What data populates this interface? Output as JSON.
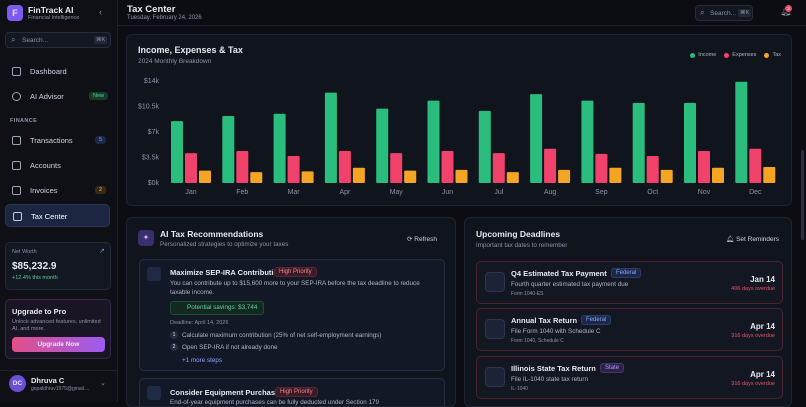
{
  "sidebar": {
    "logo": "F",
    "brand": "FinTrack AI",
    "tagline": "Financial Intelligence",
    "search": "Search...",
    "search_key": "⌘K",
    "nav": [
      {
        "label": "Dashboard"
      },
      {
        "label": "AI Advisor",
        "badge": "New"
      }
    ],
    "section": "FINANCE",
    "finance_nav": [
      {
        "label": "Transactions",
        "badge": "5"
      },
      {
        "label": "Accounts"
      },
      {
        "label": "Invoices",
        "badge": "2"
      },
      {
        "label": "Tax Center"
      }
    ],
    "net_worth": {
      "label": "Net Worth",
      "value": "$85,232.9",
      "change": "+12.4% this month"
    },
    "upgrade": {
      "title": "Upgrade to Pro",
      "text": "Unlock advanced features, unlimited AI, and more.",
      "button": "Upgrade Now"
    },
    "user": {
      "initials": "DC",
      "name": "Dhruva C",
      "email": "gopaldhruv1975@gmail...."
    }
  },
  "header": {
    "title": "Tax Center",
    "date": "Tuesday, February 24, 2026",
    "search": "Search...",
    "search_key": "⌘K",
    "notifications": "3"
  },
  "chart_data": {
    "type": "bar",
    "title": "Income, Expenses & Tax",
    "subtitle": "2024 Monthly Breakdown",
    "categories": [
      "Jan",
      "Feb",
      "Mar",
      "Apr",
      "May",
      "Jun",
      "Jul",
      "Aug",
      "Sep",
      "Oct",
      "Nov",
      "Dec"
    ],
    "series": [
      {
        "name": "Income",
        "color": "#2bbd7e",
        "values": [
          8500,
          9200,
          9500,
          12400,
          10200,
          11300,
          9900,
          12200,
          11300,
          11000,
          11000,
          13900
        ]
      },
      {
        "name": "Expenses",
        "color": "#f0426b",
        "values": [
          4100,
          4400,
          3700,
          4400,
          4100,
          4400,
          4100,
          4700,
          4000,
          3700,
          4400,
          4700
        ]
      },
      {
        "name": "Tax",
        "color": "#f5a524",
        "values": [
          1700,
          1500,
          1600,
          2100,
          1700,
          1800,
          1500,
          1800,
          2100,
          1800,
          2100,
          2200
        ]
      }
    ],
    "ylim": [
      0,
      14000
    ],
    "yticks": [
      {
        "value": 0,
        "label": "$0k"
      },
      {
        "value": 3500,
        "label": "$3.5k"
      },
      {
        "value": 7000,
        "label": "$7k"
      },
      {
        "value": 10500,
        "label": "$10.5k"
      },
      {
        "value": 14000,
        "label": "$14k"
      }
    ],
    "legend": "top-right"
  },
  "recommendations": {
    "title": "AI Tax Recommendations",
    "subtitle": "Personalized strategies to optimize your taxes",
    "refresh": "Refresh",
    "items": [
      {
        "title": "Maximize SEP-IRA Contribution",
        "priority": "High Priority",
        "text": "You can contribute up to $15,600 more to your SEP-IRA before the tax deadline to reduce taxable income.",
        "savings": "Potential savings: $3,744",
        "deadline": "Deadline: April 14, 2026",
        "steps": [
          {
            "n": "1",
            "text": "Calculate maximum contribution (25% of net self-employment earnings)"
          },
          {
            "n": "2",
            "text": "Open SEP-IRA if not already done"
          }
        ],
        "more": "+1 more steps"
      },
      {
        "title": "Consider Equipment Purchases",
        "priority": "High Priority",
        "text": "End-of-year equipment purchases can be fully deducted under Section 179"
      }
    ]
  },
  "deadlines": {
    "title": "Upcoming Deadlines",
    "subtitle": "Important tax dates to remember",
    "action": "Set Reminders",
    "items": [
      {
        "title": "Q4 Estimated Tax Payment",
        "tag": "Federal",
        "text": "Fourth quarter estimated tax payment due",
        "form": "Form 1040-ES",
        "date": "Jan 14",
        "status": "406 days overdue"
      },
      {
        "title": "Annual Tax Return",
        "tag": "Federal",
        "text": "File Form 1040 with Schedule C",
        "form": "Form 1040, Schedule C",
        "date": "Apr 14",
        "status": "316 days overdue"
      },
      {
        "title": "Illinois State Tax Return",
        "tag": "State",
        "text": "File IL-1040 state tax return",
        "form": "IL-1040",
        "date": "Apr 14",
        "status": "316 days overdue"
      }
    ]
  }
}
